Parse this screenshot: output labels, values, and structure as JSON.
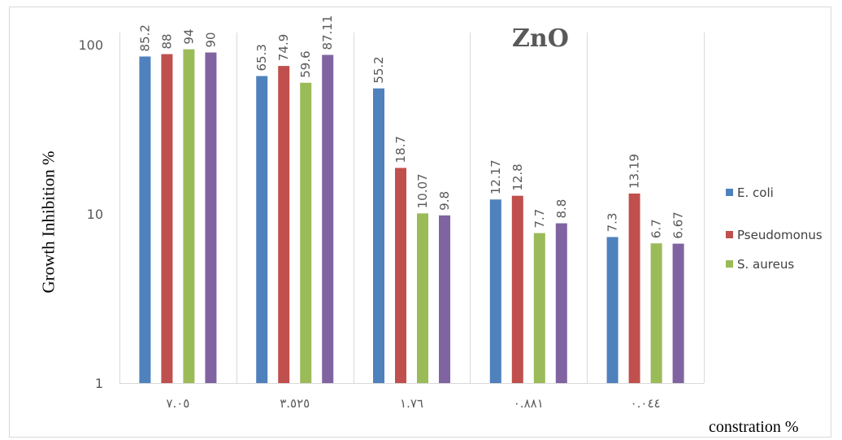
{
  "chart_data": {
    "type": "bar",
    "title": "ZnO",
    "xlabel": "constration %",
    "ylabel": "Growth Inhibition %",
    "y_scale": "log",
    "ylim": [
      1,
      100
    ],
    "y_ticks": [
      "1",
      "10",
      "100"
    ],
    "grid": "vertical category separators",
    "legend_position": "right",
    "categories": [
      "٧.٠٥",
      "٣.٥٢٥",
      "١.٧٦",
      "٠.٨٨١",
      "٠.٠٤٤"
    ],
    "series": [
      {
        "name": "E. coli",
        "color": "#4f81bd",
        "values": [
          85.2,
          65.3,
          55.2,
          12.17,
          7.3
        ],
        "labels": [
          "85.2",
          "65.3",
          "55.2",
          "12.17",
          "7.3"
        ]
      },
      {
        "name": "Pseudomonus",
        "color": "#c0504d",
        "values": [
          88,
          74.9,
          18.7,
          12.8,
          13.19
        ],
        "labels": [
          "88",
          "74.9",
          "18.7",
          "12.8",
          "13.19"
        ]
      },
      {
        "name": "S. aureus",
        "color": "#9bbb59",
        "values": [
          94,
          59.6,
          10.07,
          7.7,
          6.7
        ],
        "labels": [
          "94",
          "59.6",
          "10.07",
          "7.7",
          "6.7"
        ]
      },
      {
        "name": "",
        "color": "#8064a2",
        "values": [
          90,
          87.11,
          9.8,
          8.8,
          6.67
        ],
        "labels": [
          "90",
          "87.11",
          "9.8",
          "8.8",
          "6.67"
        ]
      }
    ]
  }
}
